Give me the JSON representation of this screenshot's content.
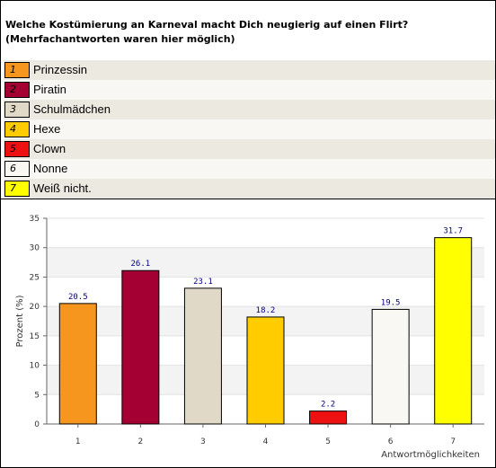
{
  "chart_data": {
    "type": "bar",
    "title": "Welche Kostümierung an Karneval macht Dich neugierig auf einen Flirt? (Mehrfachantworten waren hier möglich)",
    "title_lines": [
      "Welche Kostümierung an Karneval macht Dich neugierig auf einen Flirt?",
      "(Mehrfachantworten waren hier möglich)"
    ],
    "legend": [
      {
        "num": "1",
        "label": "Prinzessin",
        "color": "#f7961e"
      },
      {
        "num": "2",
        "label": "Piratin",
        "color": "#a50034"
      },
      {
        "num": "3",
        "label": "Schulmädchen",
        "color": "#e1d9c7"
      },
      {
        "num": "4",
        "label": "Hexe",
        "color": "#ffcc00"
      },
      {
        "num": "5",
        "label": "Clown",
        "color": "#ee1111"
      },
      {
        "num": "6",
        "label": "Nonne",
        "color": "#f9f8f2"
      },
      {
        "num": "7",
        "label": "Weiß nicht.",
        "color": "#ffff00"
      }
    ],
    "categories": [
      "1",
      "2",
      "3",
      "4",
      "5",
      "6",
      "7"
    ],
    "values": [
      20.5,
      26.1,
      23.1,
      18.2,
      2.2,
      19.5,
      31.7
    ],
    "value_labels": [
      "20.5",
      "26.1",
      "23.1",
      "18.2",
      "2.2",
      "19.5",
      "31.7"
    ],
    "colors": [
      "#f7961e",
      "#a50034",
      "#e1d9c7",
      "#ffcc00",
      "#ee1111",
      "#f9f8f2",
      "#ffff00"
    ],
    "xlabel": "Antwortmöglichkeiten",
    "ylabel": "Prozent (%)",
    "ylim": [
      0,
      35
    ],
    "yticks": [
      "0",
      "5",
      "10",
      "15",
      "20",
      "25",
      "30",
      "35"
    ],
    "grid": "alternating horizontal bands"
  }
}
